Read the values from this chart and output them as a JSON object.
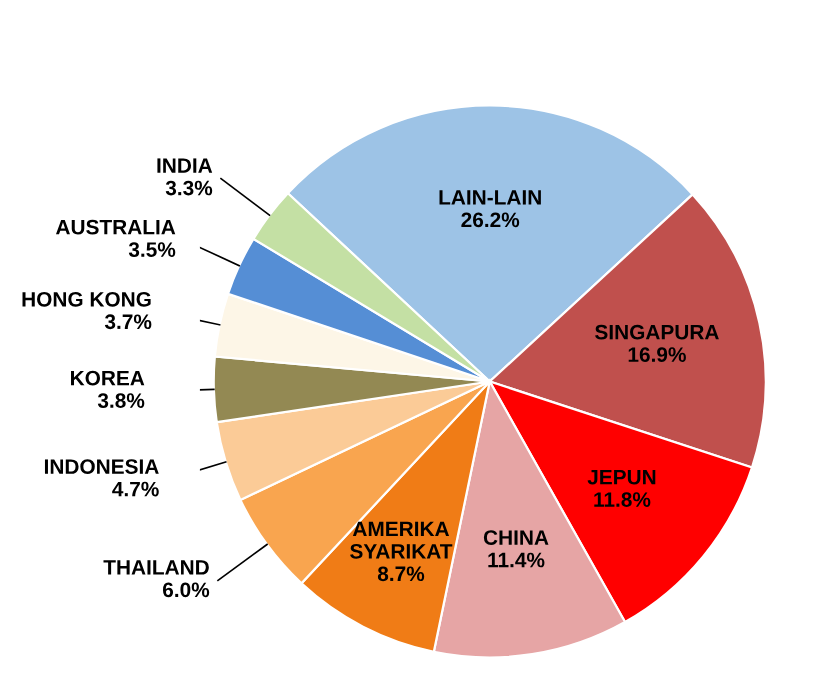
{
  "chart_data": {
    "type": "pie",
    "categories": [
      "LAIN-LAIN",
      "SINGAPURA",
      "JEPUN",
      "CHINA",
      "AMERIKA SYARIKAT",
      "THAILAND",
      "INDONESIA",
      "KOREA",
      "HONG KONG",
      "AUSTRALIA",
      "INDIA"
    ],
    "values": [
      26.2,
      16.9,
      11.8,
      11.4,
      8.7,
      6.0,
      4.7,
      3.8,
      3.7,
      3.5,
      3.3
    ],
    "value_labels": [
      "26.2%",
      "16.9%",
      "11.8%",
      "11.4%",
      "8.7%",
      "6.0%",
      "4.7%",
      "3.8%",
      "3.7%",
      "3.5%",
      "3.3%"
    ],
    "colors": [
      "#9dc3e6",
      "#c0504d",
      "#ff0000",
      "#e6a5a5",
      "#f07c16",
      "#f9a54f",
      "#fbcb97",
      "#938953",
      "#fdf6e7",
      "#558ed5",
      "#c4e0a4"
    ],
    "legend": false
  }
}
